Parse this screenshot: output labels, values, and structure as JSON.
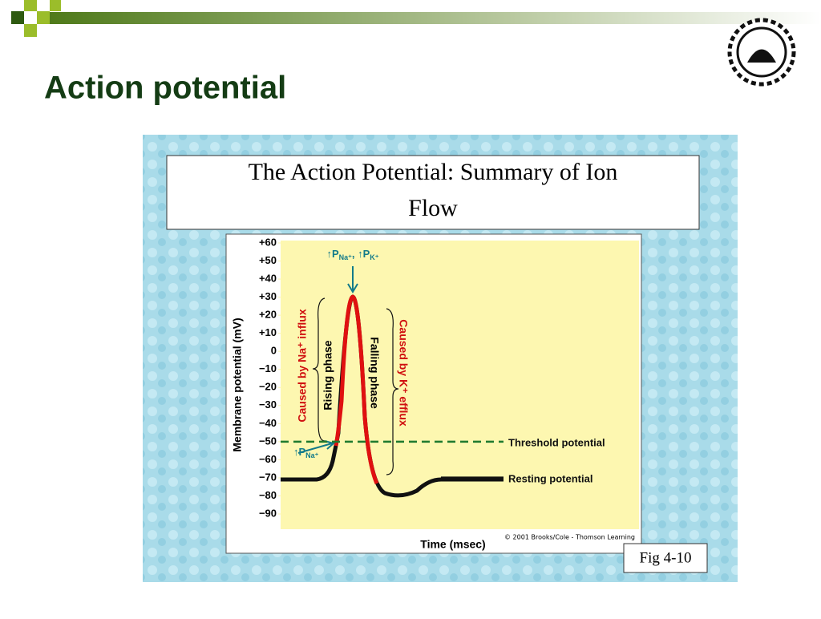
{
  "slide": {
    "title": "Action potential",
    "figure": {
      "title_lines": [
        "The Action Potential: Summary of Ion",
        "Flow"
      ],
      "caption": "Fig 4-10"
    },
    "chart_data": {
      "type": "line",
      "y_label": "Membrane potential (mV)",
      "x_label": "Time (msec)",
      "credit": "© 2001 Brooks/Cole - Thomson Learning",
      "ylim": [
        60,
        -90
      ],
      "yticks": [
        {
          "value": 60,
          "label": "+60"
        },
        {
          "value": 50,
          "label": "+50"
        },
        {
          "value": 40,
          "label": "+40"
        },
        {
          "value": 30,
          "label": "+30"
        },
        {
          "value": 20,
          "label": "+20"
        },
        {
          "value": 10,
          "label": "+10"
        },
        0,
        {
          "value": -10,
          "label": "−10"
        },
        {
          "value": -20,
          "label": "−20"
        },
        {
          "value": -30,
          "label": "−30"
        },
        {
          "value": -40,
          "label": "−40"
        },
        {
          "value": -50,
          "label": "−50"
        },
        {
          "value": -60,
          "label": "−60"
        },
        {
          "value": -70,
          "label": "−70"
        },
        {
          "value": -80,
          "label": "−80"
        },
        {
          "value": -90,
          "label": "−90"
        }
      ],
      "reference_lines": [
        {
          "value": -50,
          "label": "Threshold potential",
          "color": "#1f7a2e"
        },
        {
          "value": -70,
          "label": "Resting potential",
          "color": "#111111"
        }
      ],
      "annotations": {
        "rising": "Rising phase",
        "falling": "Falling phase",
        "na": "Caused by Na⁺ influx",
        "k": "Caused by K⁺ efflux",
        "peak": [
          "↑P",
          "Na⁺",
          ", ↑P",
          "K⁺"
        ],
        "threshold": [
          "↑P",
          "Na⁺"
        ]
      }
    }
  }
}
